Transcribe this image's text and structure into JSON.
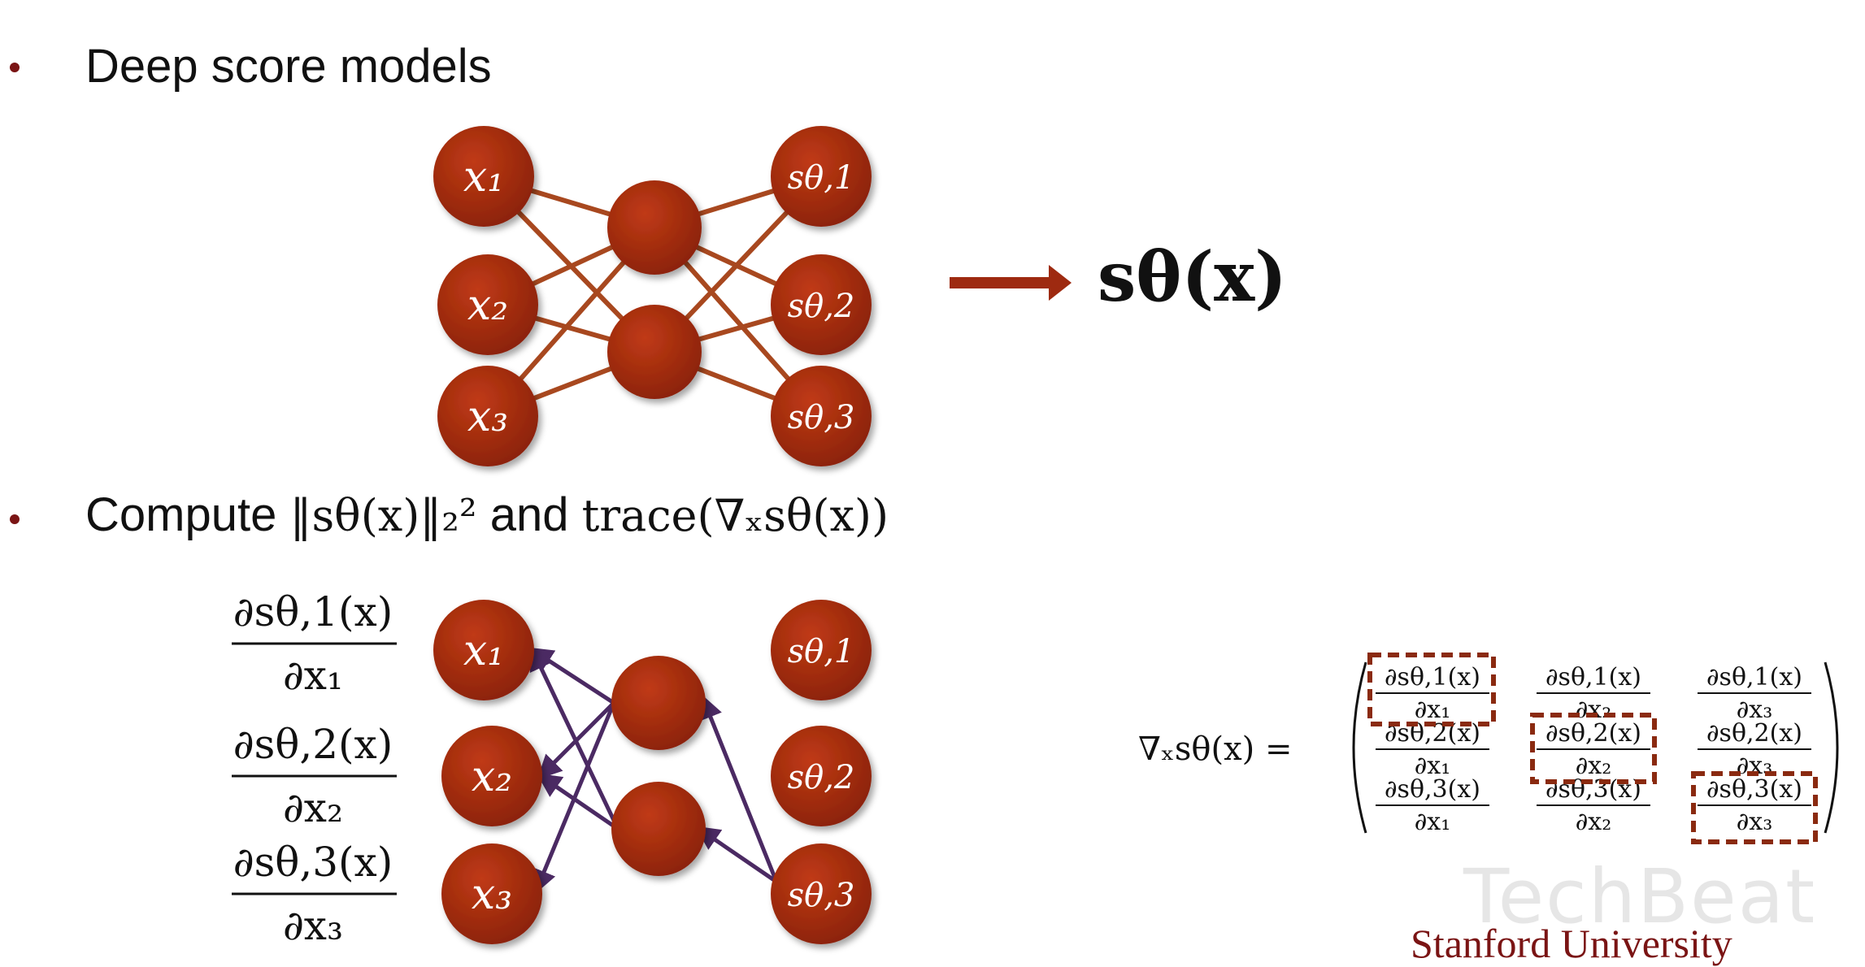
{
  "bullets": [
    {
      "text": "Deep score models"
    },
    {
      "text_before": "Compute",
      "text_norm": "‖sθ(x)‖₂²",
      "text_and": "and",
      "text_trace": "trace(∇ₓsθ(x))"
    }
  ],
  "network_top": {
    "inputs": [
      "x₁",
      "x₂",
      "x₃"
    ],
    "outputs": [
      "sθ,1",
      "sθ,2",
      "sθ,3"
    ],
    "result": "sθ(x)"
  },
  "network_bottom": {
    "inputs": [
      "x₁",
      "x₂",
      "x₃"
    ],
    "outputs": [
      "sθ,1",
      "sθ,2",
      "sθ,3"
    ],
    "derivatives": [
      {
        "num": "∂sθ,1(x)",
        "den": "∂x₁"
      },
      {
        "num": "∂sθ,2(x)",
        "den": "∂x₂"
      },
      {
        "num": "∂sθ,3(x)",
        "den": "∂x₃"
      }
    ]
  },
  "jacobian": {
    "lhs": "∇ₓsθ(x) =",
    "cells": [
      [
        {
          "num": "∂sθ,1(x)",
          "den": "∂x₁"
        },
        {
          "num": "∂sθ,1(x)",
          "den": "∂x₂"
        },
        {
          "num": "∂sθ,1(x)",
          "den": "∂x₃"
        }
      ],
      [
        {
          "num": "∂sθ,2(x)",
          "den": "∂x₁"
        },
        {
          "num": "∂sθ,2(x)",
          "den": "∂x₂"
        },
        {
          "num": "∂sθ,2(x)",
          "den": "∂x₃"
        }
      ],
      [
        {
          "num": "∂sθ,3(x)",
          "den": "∂x₁"
        },
        {
          "num": "∂sθ,3(x)",
          "den": "∂x₂"
        },
        {
          "num": "∂sθ,3(x)",
          "den": "∂x₃"
        }
      ]
    ]
  },
  "watermark": "TechBeat",
  "footer": "Stanford University",
  "colors": {
    "node": "#9e2a10",
    "edge_top": "#a8481f",
    "edge_bottom": "#4b2a63",
    "accent": "#7a1414",
    "box": "#8a2a10"
  }
}
